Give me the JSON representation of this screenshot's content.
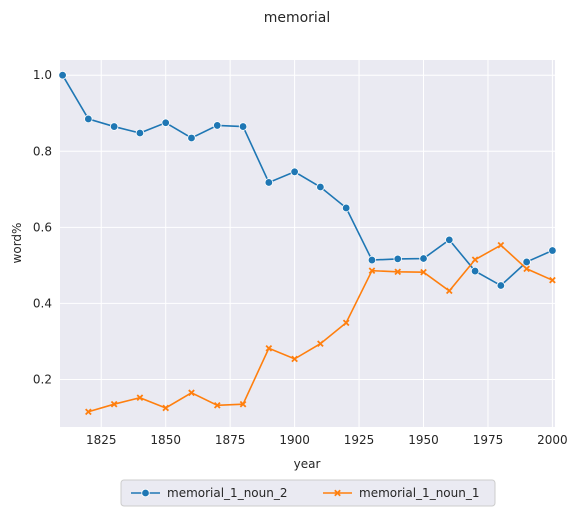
{
  "chart_data": {
    "type": "line",
    "title": "memorial",
    "xlabel": "year",
    "ylabel": "word%",
    "xlim": [
      1809,
      2001
    ],
    "ylim": [
      0.075,
      1.04
    ],
    "xticks": [
      1825,
      1850,
      1875,
      1900,
      1925,
      1950,
      1975,
      2000
    ],
    "yticks": [
      0.2,
      0.4,
      0.6,
      0.8,
      1.0
    ],
    "ytick_labels": [
      "0.2",
      "0.4",
      "0.6",
      "0.8",
      "1.0"
    ],
    "grid": true,
    "legend_position": "bottom-center",
    "series": [
      {
        "name": "memorial_1_noun_2",
        "color": "#1f77b4",
        "marker": "circle",
        "x": [
          1810,
          1820,
          1830,
          1840,
          1850,
          1860,
          1870,
          1880,
          1890,
          1900,
          1910,
          1920,
          1930,
          1940,
          1950,
          1960,
          1970,
          1980,
          1990,
          2000
        ],
        "y": [
          1.0,
          0.885,
          0.865,
          0.848,
          0.875,
          0.835,
          0.868,
          0.865,
          0.718,
          0.746,
          0.706,
          0.651,
          0.514,
          0.517,
          0.518,
          0.567,
          0.485,
          0.447,
          0.509,
          0.539
        ]
      },
      {
        "name": "memorial_1_noun_1",
        "color": "#ff7f0e",
        "marker": "x",
        "x": [
          1820,
          1830,
          1840,
          1850,
          1860,
          1870,
          1880,
          1890,
          1900,
          1910,
          1920,
          1930,
          1940,
          1950,
          1960,
          1970,
          1980,
          1990,
          2000
        ],
        "y": [
          0.115,
          0.135,
          0.152,
          0.125,
          0.165,
          0.132,
          0.135,
          0.282,
          0.254,
          0.294,
          0.349,
          0.486,
          0.483,
          0.482,
          0.433,
          0.515,
          0.553,
          0.491,
          0.461
        ]
      }
    ]
  }
}
